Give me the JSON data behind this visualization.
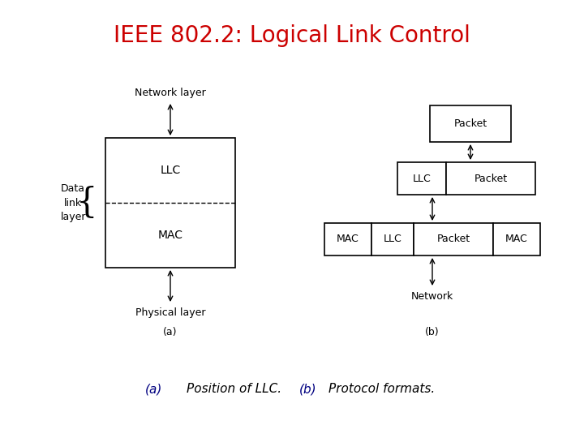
{
  "title": "IEEE 802.2: Logical Link Control",
  "title_color": "#cc0000",
  "title_fontsize": 20,
  "bg_color": "#ffffff",
  "caption": "(a) Position of LLC. (b) Protocol formats.",
  "caption_color": "#000080",
  "caption_fontsize": 11,
  "diagram_text_color": "#000000",
  "diagram_fontsize": 9,
  "a_llc_label": "LLC",
  "a_mac_label": "MAC",
  "a_network_label": "Network layer",
  "a_physical_label": "Physical layer",
  "a_data_link_label": "Data\nlink\nlayer",
  "a_caption": "(a)",
  "b_caption": "(b)",
  "b_network_label": "Network"
}
